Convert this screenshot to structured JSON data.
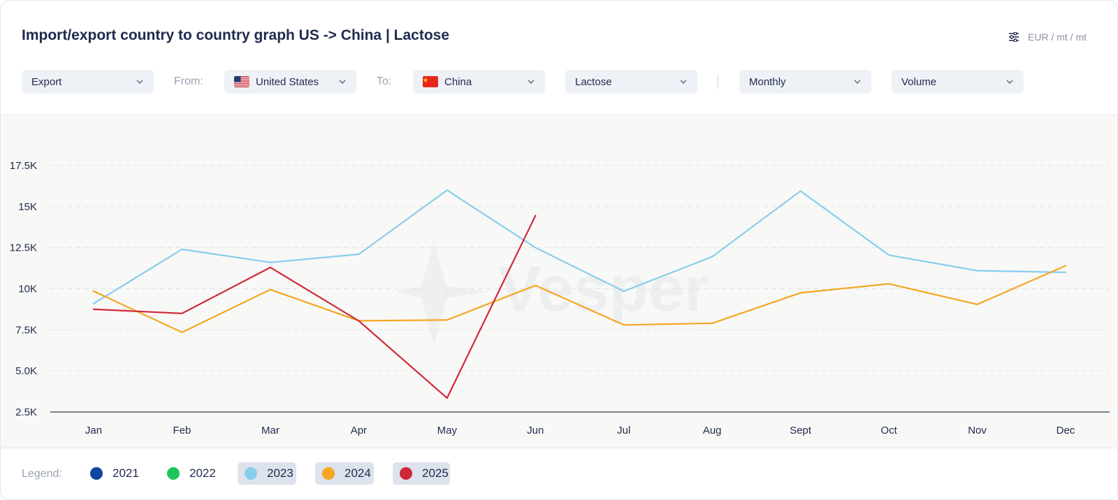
{
  "header": {
    "title": "Import/export country to country graph US -> China | Lactose",
    "units_label": "EUR / mt / mt"
  },
  "filters": {
    "direction": "Export",
    "from_label": "From:",
    "from_value": "United States",
    "to_label": "To:",
    "to_value": "China",
    "product": "Lactose",
    "period": "Monthly",
    "metric": "Volume"
  },
  "watermark": "Vesper",
  "legend": {
    "label": "Legend:",
    "items": [
      {
        "name": "2021",
        "color": "#0d47a1",
        "active": false
      },
      {
        "name": "2022",
        "color": "#1ec65a",
        "active": false
      },
      {
        "name": "2023",
        "color": "#87ceeb",
        "active": true
      },
      {
        "name": "2024",
        "color": "#f5a623",
        "active": true
      },
      {
        "name": "2025",
        "color": "#d0283a",
        "active": true
      }
    ]
  },
  "chart_data": {
    "type": "line",
    "categories": [
      "Jan",
      "Feb",
      "Mar",
      "Apr",
      "May",
      "Jun",
      "Jul",
      "Aug",
      "Sept",
      "Oct",
      "Nov",
      "Dec"
    ],
    "yticks": [
      "2.5K",
      "5.0K",
      "7.5K",
      "10K",
      "12.5K",
      "15K",
      "17.5K"
    ],
    "ylim": [
      2500,
      17500
    ],
    "grid": true,
    "legend_position": "bottom",
    "series": [
      {
        "name": "2023",
        "color": "#87ceeb",
        "values": [
          9100,
          12400,
          11600,
          12100,
          16000,
          12500,
          9850,
          11950,
          15950,
          12050,
          11100,
          11000
        ]
      },
      {
        "name": "2024",
        "color": "#f5a623",
        "values": [
          9850,
          7350,
          9950,
          8050,
          8100,
          10200,
          7800,
          7900,
          9750,
          10300,
          9050,
          11400
        ]
      },
      {
        "name": "2025",
        "color": "#d0283a",
        "values": [
          8750,
          8500,
          11300,
          8050,
          3350,
          14450,
          null,
          null,
          null,
          null,
          null,
          null
        ]
      }
    ]
  }
}
